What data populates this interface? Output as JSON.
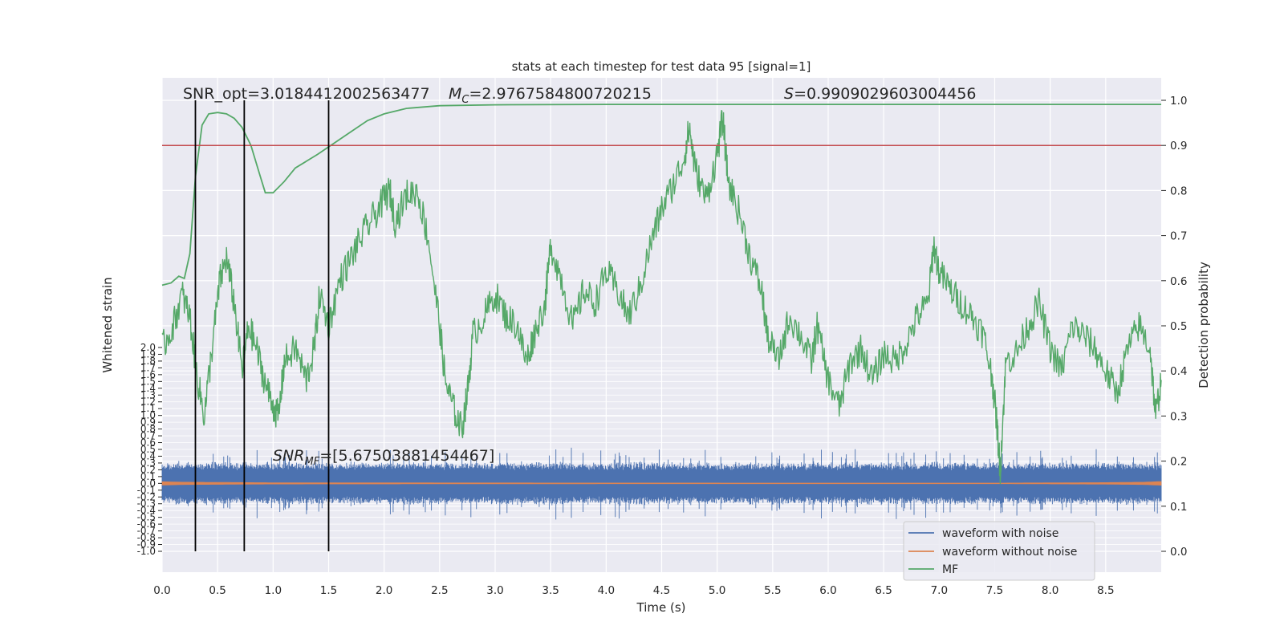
{
  "chart_data": {
    "type": "line",
    "title": "stats at each timestep for test data 95 [signal=1]",
    "xlabel": "Time (s)",
    "ylabel_left": "Whitened strain",
    "ylabel_right": "Detection probability",
    "xlim": [
      0.0,
      9.0
    ],
    "ylim_left": [
      -1.0,
      2.0
    ],
    "ylim_right": [
      0.0,
      1.0
    ],
    "xticks": [
      "0.0",
      "0.5",
      "1.0",
      "1.5",
      "2.0",
      "2.5",
      "3.0",
      "3.5",
      "4.0",
      "4.5",
      "5.0",
      "5.5",
      "6.0",
      "6.5",
      "7.0",
      "7.5",
      "8.0",
      "8.5"
    ],
    "yticks_left": [
      "2.0",
      "1.9",
      "1.8",
      "1.7",
      "1.6",
      "1.5",
      "1.4",
      "1.3",
      "1.2",
      "1.1",
      "1.0",
      "0.9",
      "0.8",
      "0.7",
      "0.6",
      "0.5",
      "0.4",
      "0.3",
      "0.2",
      "0.1",
      "0.0",
      "-0.1",
      "-0.2",
      "-0.3",
      "-0.4",
      "-0.5",
      "-0.6",
      "-0.7",
      "-0.8",
      "-0.9",
      "-1.0"
    ],
    "yticks_right": [
      "0.0",
      "0.1",
      "0.2",
      "0.3",
      "0.4",
      "0.5",
      "0.6",
      "0.7",
      "0.8",
      "0.9",
      "1.0"
    ],
    "grid": true,
    "legend_position": "lower-right",
    "annotations": {
      "snr_opt": "SNR_opt=3.0184412002563477",
      "mc_symbol": "M",
      "mc_sub": "C",
      "mc_value": "=2.9767584800720215",
      "s_symbol": "S",
      "s_value": "=0.9909029603004456",
      "snr_mf_main": "SNR",
      "snr_mf_sub": "MF",
      "snr_mf_value": "=[5.67503881454467]"
    },
    "vertical_lines_x": [
      0.3,
      0.74,
      1.5
    ],
    "threshold_line": 0.9,
    "series": [
      {
        "name": "waveform with noise",
        "color": "#4c72b0",
        "axis": "left",
        "envelope_typical": 0.28,
        "envelope_peak": 0.55
      },
      {
        "name": "waveform without noise",
        "color": "#dd8452",
        "axis": "left",
        "envelope": [
          [
            0.0,
            0.025
          ],
          [
            0.2,
            0.018
          ],
          [
            1.0,
            0.01
          ],
          [
            4.0,
            0.006
          ],
          [
            7.5,
            0.005
          ],
          [
            8.5,
            0.012
          ],
          [
            8.85,
            0.018
          ],
          [
            9.0,
            0.028
          ]
        ]
      },
      {
        "name": "MF",
        "color": "#55a868",
        "axis": "right",
        "points": [
          [
            0.0,
            0.59
          ],
          [
            0.08,
            0.595
          ],
          [
            0.15,
            0.61
          ],
          [
            0.2,
            0.605
          ],
          [
            0.25,
            0.66
          ],
          [
            0.3,
            0.83
          ],
          [
            0.36,
            0.945
          ],
          [
            0.42,
            0.97
          ],
          [
            0.5,
            0.973
          ],
          [
            0.58,
            0.97
          ],
          [
            0.65,
            0.96
          ],
          [
            0.72,
            0.94
          ],
          [
            0.8,
            0.9
          ],
          [
            0.88,
            0.835
          ],
          [
            0.93,
            0.795
          ],
          [
            1.0,
            0.795
          ],
          [
            1.1,
            0.82
          ],
          [
            1.2,
            0.85
          ],
          [
            1.3,
            0.865
          ],
          [
            1.4,
            0.88
          ],
          [
            1.55,
            0.905
          ],
          [
            1.7,
            0.93
          ],
          [
            1.85,
            0.955
          ],
          [
            2.0,
            0.97
          ],
          [
            2.2,
            0.982
          ],
          [
            2.5,
            0.988
          ],
          [
            3.0,
            0.99
          ],
          [
            4.0,
            0.991
          ],
          [
            5.0,
            0.991
          ],
          [
            6.0,
            0.991
          ],
          [
            7.0,
            0.991
          ],
          [
            8.0,
            0.991
          ],
          [
            9.0,
            0.991
          ]
        ],
        "noisy_points": [
          [
            0.0,
            0.45
          ],
          [
            0.1,
            0.5
          ],
          [
            0.18,
            0.57
          ],
          [
            0.25,
            0.52
          ],
          [
            0.32,
            0.38
          ],
          [
            0.38,
            0.3
          ],
          [
            0.45,
            0.45
          ],
          [
            0.52,
            0.6
          ],
          [
            0.58,
            0.65
          ],
          [
            0.65,
            0.55
          ],
          [
            0.72,
            0.4
          ],
          [
            0.78,
            0.5
          ],
          [
            0.85,
            0.45
          ],
          [
            0.92,
            0.38
          ],
          [
            1.0,
            0.32
          ],
          [
            1.05,
            0.3
          ],
          [
            1.1,
            0.42
          ],
          [
            1.2,
            0.45
          ],
          [
            1.3,
            0.38
          ],
          [
            1.37,
            0.45
          ],
          [
            1.42,
            0.57
          ],
          [
            1.5,
            0.5
          ],
          [
            1.6,
            0.6
          ],
          [
            1.7,
            0.65
          ],
          [
            1.8,
            0.7
          ],
          [
            1.9,
            0.74
          ],
          [
            2.0,
            0.78
          ],
          [
            2.05,
            0.8
          ],
          [
            2.1,
            0.73
          ],
          [
            2.2,
            0.79
          ],
          [
            2.3,
            0.8
          ],
          [
            2.4,
            0.69
          ],
          [
            2.5,
            0.5
          ],
          [
            2.55,
            0.38
          ],
          [
            2.62,
            0.32
          ],
          [
            2.7,
            0.27
          ],
          [
            2.75,
            0.35
          ],
          [
            2.8,
            0.48
          ],
          [
            2.9,
            0.52
          ],
          [
            3.0,
            0.57
          ],
          [
            3.1,
            0.52
          ],
          [
            3.2,
            0.5
          ],
          [
            3.28,
            0.42
          ],
          [
            3.35,
            0.48
          ],
          [
            3.45,
            0.55
          ],
          [
            3.5,
            0.68
          ],
          [
            3.6,
            0.6
          ],
          [
            3.7,
            0.5
          ],
          [
            3.8,
            0.58
          ],
          [
            3.9,
            0.55
          ],
          [
            4.0,
            0.62
          ],
          [
            4.1,
            0.58
          ],
          [
            4.2,
            0.52
          ],
          [
            4.3,
            0.58
          ],
          [
            4.4,
            0.68
          ],
          [
            4.5,
            0.76
          ],
          [
            4.6,
            0.81
          ],
          [
            4.7,
            0.87
          ],
          [
            4.75,
            0.94
          ],
          [
            4.8,
            0.85
          ],
          [
            4.9,
            0.78
          ],
          [
            5.0,
            0.88
          ],
          [
            5.05,
            0.96
          ],
          [
            5.1,
            0.82
          ],
          [
            5.2,
            0.75
          ],
          [
            5.3,
            0.65
          ],
          [
            5.4,
            0.58
          ],
          [
            5.45,
            0.48
          ],
          [
            5.55,
            0.42
          ],
          [
            5.65,
            0.52
          ],
          [
            5.75,
            0.48
          ],
          [
            5.85,
            0.42
          ],
          [
            5.9,
            0.5
          ],
          [
            6.0,
            0.38
          ],
          [
            6.1,
            0.32
          ],
          [
            6.2,
            0.42
          ],
          [
            6.3,
            0.45
          ],
          [
            6.4,
            0.38
          ],
          [
            6.5,
            0.44
          ],
          [
            6.6,
            0.42
          ],
          [
            6.7,
            0.46
          ],
          [
            6.8,
            0.52
          ],
          [
            6.9,
            0.55
          ],
          [
            6.95,
            0.68
          ],
          [
            7.0,
            0.62
          ],
          [
            7.1,
            0.58
          ],
          [
            7.2,
            0.55
          ],
          [
            7.3,
            0.52
          ],
          [
            7.4,
            0.48
          ],
          [
            7.48,
            0.38
          ],
          [
            7.52,
            0.28
          ],
          [
            7.55,
            0.18
          ],
          [
            7.6,
            0.42
          ],
          [
            7.7,
            0.44
          ],
          [
            7.8,
            0.5
          ],
          [
            7.9,
            0.55
          ],
          [
            8.0,
            0.45
          ],
          [
            8.1,
            0.4
          ],
          [
            8.2,
            0.5
          ],
          [
            8.3,
            0.48
          ],
          [
            8.4,
            0.45
          ],
          [
            8.5,
            0.4
          ],
          [
            8.6,
            0.35
          ],
          [
            8.7,
            0.45
          ],
          [
            8.8,
            0.5
          ],
          [
            8.9,
            0.45
          ],
          [
            8.95,
            0.3
          ],
          [
            9.0,
            0.38
          ]
        ]
      }
    ]
  }
}
